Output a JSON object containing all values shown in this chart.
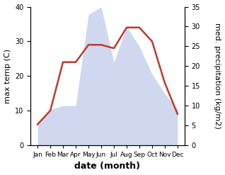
{
  "months": [
    "Jan",
    "Feb",
    "Mar",
    "Apr",
    "May",
    "Jun",
    "Jul",
    "Aug",
    "Sep",
    "Oct",
    "Nov",
    "Dec"
  ],
  "temp": [
    6,
    10,
    24,
    24,
    29,
    29,
    28,
    34,
    34,
    30,
    18,
    9
  ],
  "precip": [
    5,
    9,
    10,
    10,
    33,
    35,
    21,
    30,
    25,
    18,
    13,
    9
  ],
  "temp_color": "#c0392b",
  "precip_color": "#b8c4e8",
  "ylabel_left": "max temp (C)",
  "ylabel_right": "med. precipitation (kg/m2)",
  "xlabel": "date (month)",
  "ylim_left": [
    0,
    40
  ],
  "ylim_right": [
    0,
    35
  ],
  "yticks_left": [
    0,
    10,
    20,
    30,
    40
  ],
  "yticks_right": [
    0,
    5,
    10,
    15,
    20,
    25,
    30,
    35
  ],
  "background_color": "#ffffff",
  "temp_linewidth": 1.8,
  "xlabel_fontsize": 9,
  "ylabel_fontsize": 8
}
